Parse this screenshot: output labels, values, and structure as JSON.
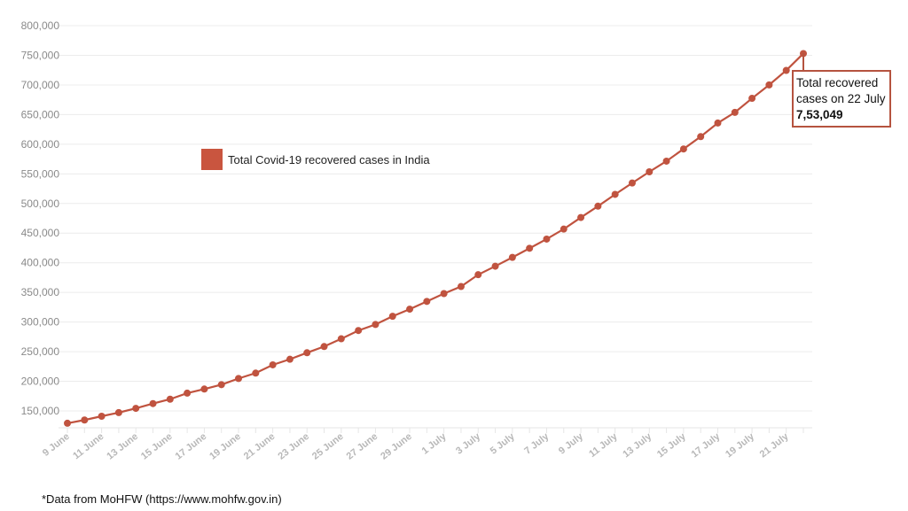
{
  "chart_data": {
    "type": "line",
    "title": "",
    "xlabel": "",
    "ylabel": "",
    "ylim": [
      120000,
      800000
    ],
    "y_ticks": [
      150000,
      200000,
      250000,
      300000,
      350000,
      400000,
      450000,
      500000,
      550000,
      600000,
      650000,
      700000,
      750000,
      800000
    ],
    "y_tick_labels": [
      "150,000",
      "200,000",
      "250,000",
      "300,000",
      "350,000",
      "400,000",
      "450,000",
      "500,000",
      "550,000",
      "600,000",
      "650,000",
      "700,000",
      "750,000",
      "800,000"
    ],
    "grid": true,
    "legend_placement": "upper-left-center",
    "x": [
      "9 June",
      "10 June",
      "11 June",
      "12 June",
      "13 June",
      "14 June",
      "15 June",
      "16 June",
      "17 June",
      "18 June",
      "19 June",
      "20 June",
      "21 June",
      "22 June",
      "23 June",
      "24 June",
      "25 June",
      "26 June",
      "27 June",
      "28 June",
      "29 June",
      "30 June",
      "1 July",
      "2 July",
      "3 July",
      "4 July",
      "5 July",
      "6 July",
      "7 July",
      "8 July",
      "9 July",
      "10 July",
      "11 July",
      "12 July",
      "13 July",
      "14 July",
      "15 July",
      "16 July",
      "17 July",
      "18 July",
      "19 July",
      "20 July",
      "21 July",
      "22 July"
    ],
    "x_tick_labels": [
      "9 June",
      "11 June",
      "13 June",
      "15 June",
      "17 June",
      "19 June",
      "21 June",
      "23 June",
      "25 June",
      "27 June",
      "29 June",
      "1 July",
      "3 July",
      "5 July",
      "7 July",
      "9 July",
      "11 July",
      "13 July",
      "15 July",
      "17 July",
      "19 July",
      "21 July"
    ],
    "series": [
      {
        "name": "Total Covid-19 recovered cases in India",
        "color": "#c0533f",
        "values": [
          129215,
          134670,
          141029,
          147195,
          154330,
          162379,
          169798,
          180013,
          186935,
          194325,
          204711,
          213831,
          227756,
          237196,
          248190,
          258685,
          271697,
          285637,
          295881,
          309713,
          321723,
          334822,
          347979,
          359860,
          379892,
          394227,
          409083,
          424433,
          439948,
          456831,
          476378,
          495513,
          515386,
          534621,
          553471,
          571460,
          592032,
          612815,
          635757,
          653751,
          677423,
          700087,
          724578,
          753049
        ]
      }
    ],
    "annotation": {
      "line1": "Total recovered",
      "line2": "cases on 22 July",
      "value": "7,53,049",
      "border_color": "#b5533f"
    },
    "footnote": "*Data from MoHFW (https://www.mohfw.gov.in)"
  }
}
